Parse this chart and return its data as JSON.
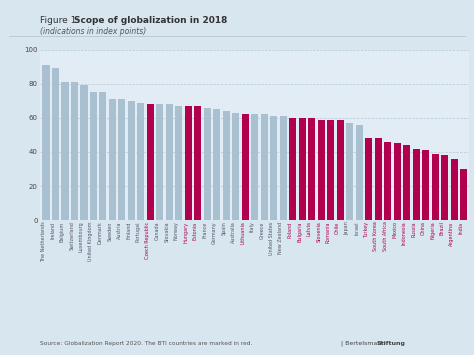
{
  "title_prefix": "Figure 1: ",
  "title_bold": "Scope of globalization in 2018",
  "subtitle": "(indications in index points)",
  "source": "Source: Globalization Report 2020. The BTI countries are marked in red.",
  "branding_normal": "Bertelsmann",
  "branding_bold": "Stiftung",
  "categories": [
    "The Netherlands",
    "Ireland",
    "Belgium",
    "Switzerland",
    "Luxembourg",
    "United Kingdom",
    "Denmark",
    "Sweden",
    "Austria",
    "Finland",
    "Portugal",
    "Czech Republic",
    "Canada",
    "Slovakia",
    "Norway",
    "Hungary",
    "Estonia",
    "France",
    "Germany",
    "Spain",
    "Australia",
    "Lithuania",
    "Italy",
    "Greece",
    "United States",
    "New Zealand",
    "Poland",
    "Bulgaria",
    "Latvia",
    "Slovenia",
    "Romania",
    "Chile",
    "Japan",
    "Israel",
    "Turkey",
    "South Korea",
    "South Africa",
    "Mexico",
    "Indonesia",
    "Russia",
    "China",
    "Nigeria",
    "Brazil",
    "Argentina",
    "India"
  ],
  "values": [
    91,
    89,
    81,
    81,
    79,
    75,
    75,
    71,
    71,
    70,
    69,
    68,
    68,
    68,
    67,
    67,
    67,
    66,
    65,
    64,
    63,
    62,
    62,
    62,
    61,
    61,
    60,
    60,
    60,
    59,
    59,
    59,
    57,
    56,
    48,
    48,
    46,
    45,
    44,
    42,
    41,
    39,
    38,
    36,
    30
  ],
  "bti_countries": [
    "Czech Republic",
    "Hungary",
    "Estonia",
    "Lithuania",
    "Poland",
    "Bulgaria",
    "Latvia",
    "Slovenia",
    "Romania",
    "Chile",
    "Turkey",
    "South Korea",
    "South Africa",
    "Mexico",
    "Indonesia",
    "Russia",
    "China",
    "Nigeria",
    "Brazil",
    "Argentina",
    "India"
  ],
  "color_bti": "#b0004e",
  "color_normal": "#a8c0d0",
  "bg_color": "#d8e6f0",
  "plot_bg_color": "#e2ecf4",
  "ylim": [
    0,
    100
  ],
  "yticks": [
    0,
    20,
    40,
    60,
    80,
    100
  ]
}
